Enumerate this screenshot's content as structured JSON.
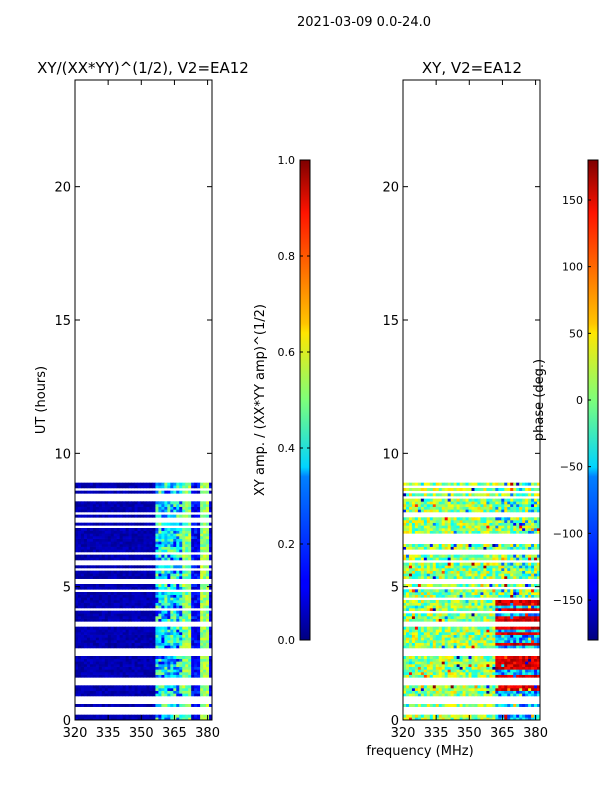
{
  "figure": {
    "suptitle": "2021-03-09 0.0-24.0",
    "shared_xlabel": "frequency (MHz)"
  },
  "chart_data": [
    {
      "type": "heatmap",
      "title": "XY/(XX*YY)^(1/2), V2=EA12",
      "xlabel": "",
      "ylabel": "UT (hours)",
      "xlim": [
        320,
        382
      ],
      "ylim": [
        0,
        24
      ],
      "xticks": [
        320,
        335,
        350,
        365,
        380
      ],
      "yticks": [
        0,
        5,
        10,
        15,
        20
      ],
      "data_ut_range": [
        0,
        8.9
      ],
      "gap_bands_ut": [
        [
          0.25,
          0.45
        ],
        [
          0.65,
          0.85
        ],
        [
          1.3,
          1.6
        ],
        [
          2.4,
          2.7
        ],
        [
          3.5,
          3.7
        ],
        [
          5.1,
          5.3
        ]
      ],
      "freq_structure_mhz": [
        [
          320,
          357,
          "low"
        ],
        [
          357,
          368,
          "mixed"
        ],
        [
          368,
          373,
          "high"
        ],
        [
          373,
          376,
          "low"
        ],
        [
          376,
          380,
          "high"
        ],
        [
          380,
          382,
          "low"
        ]
      ],
      "colorbar": {
        "label": "XY amp. / (XX*YY amp)^(1/2)",
        "range": [
          0.0,
          1.0
        ],
        "ticks": [
          "0.0",
          "0.2",
          "0.4",
          "0.6",
          "0.8",
          "1.0"
        ],
        "colormap": "jet"
      }
    },
    {
      "type": "heatmap",
      "title": "XY, V2=EA12",
      "xlabel": "frequency (MHz)",
      "ylabel": "",
      "xlim": [
        320,
        382
      ],
      "ylim": [
        0,
        24
      ],
      "xticks": [
        320,
        335,
        350,
        365,
        380
      ],
      "yticks": [
        0,
        5,
        10,
        15,
        20
      ],
      "data_ut_range": [
        0,
        8.9
      ],
      "gap_bands_ut": [
        [
          0.25,
          0.45
        ],
        [
          0.65,
          0.85
        ],
        [
          1.3,
          1.6
        ],
        [
          2.4,
          2.7
        ],
        [
          3.5,
          3.7
        ],
        [
          5.1,
          5.3
        ]
      ],
      "colorbar": {
        "label": "phase (deg.)",
        "range": [
          -180,
          180
        ],
        "ticks": [
          "150",
          "100",
          "50",
          "0",
          "−50",
          "−100",
          "−150"
        ],
        "tick_values": [
          150,
          100,
          50,
          0,
          -50,
          -100,
          -150
        ],
        "colormap": "jet"
      }
    }
  ]
}
